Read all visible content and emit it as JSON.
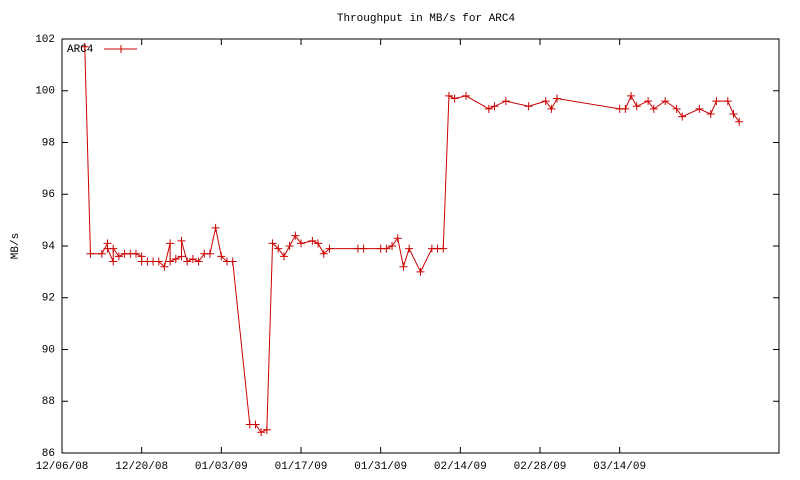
{
  "chart_data": {
    "type": "line",
    "title": "Throughput in MB/s for ARC4",
    "ylabel": "MB/s",
    "legend": "top-left",
    "xlim": [
      "2008-12-06",
      "2009-04-11"
    ],
    "xticks": [
      {
        "value": "2008-12-06",
        "label": "12/06/08"
      },
      {
        "value": "2008-12-20",
        "label": "12/20/08"
      },
      {
        "value": "2009-01-03",
        "label": "01/03/09"
      },
      {
        "value": "2009-01-17",
        "label": "01/17/09"
      },
      {
        "value": "2009-01-31",
        "label": "01/31/09"
      },
      {
        "value": "2009-02-14",
        "label": "02/14/09"
      },
      {
        "value": "2009-02-28",
        "label": "02/28/09"
      },
      {
        "value": "2009-03-14",
        "label": "03/14/09"
      }
    ],
    "ylim": [
      86,
      102
    ],
    "yticks": [
      86,
      88,
      90,
      92,
      94,
      96,
      98,
      100,
      102
    ],
    "x": [
      "2008-12-10",
      "2008-12-11",
      "2008-12-13",
      "2008-12-14",
      "2008-12-14",
      "2008-12-15",
      "2008-12-15",
      "2008-12-16",
      "2008-12-17",
      "2008-12-18",
      "2008-12-19",
      "2008-12-20",
      "2008-12-20",
      "2008-12-21",
      "2008-12-22",
      "2008-12-23",
      "2008-12-24",
      "2008-12-25",
      "2008-12-25",
      "2008-12-26",
      "2008-12-27",
      "2008-12-27",
      "2008-12-28",
      "2008-12-29",
      "2008-12-30",
      "2008-12-31",
      "2009-01-01",
      "2009-01-02",
      "2009-01-03",
      "2009-01-04",
      "2009-01-05",
      "2009-01-08",
      "2009-01-09",
      "2009-01-10",
      "2009-01-11",
      "2009-01-12",
      "2009-01-13",
      "2009-01-14",
      "2009-01-15",
      "2009-01-16",
      "2009-01-17",
      "2009-01-19",
      "2009-01-20",
      "2009-01-21",
      "2009-01-22",
      "2009-01-27",
      "2009-01-28",
      "2009-01-31",
      "2009-02-01",
      "2009-02-02",
      "2009-02-03",
      "2009-02-04",
      "2009-02-05",
      "2009-02-07",
      "2009-02-09",
      "2009-02-10",
      "2009-02-11",
      "2009-02-12",
      "2009-02-13",
      "2009-02-15",
      "2009-02-19",
      "2009-02-20",
      "2009-02-22",
      "2009-02-26",
      "2009-03-01",
      "2009-03-02",
      "2009-03-03",
      "2009-03-14",
      "2009-03-15",
      "2009-03-16",
      "2009-03-17",
      "2009-03-19",
      "2009-03-20",
      "2009-03-22",
      "2009-03-24",
      "2009-03-25",
      "2009-03-28",
      "2009-03-30",
      "2009-03-31",
      "2009-04-02",
      "2009-04-03",
      "2009-04-04"
    ],
    "series": [
      {
        "name": "ARC4",
        "color": "#cc0000",
        "values": [
          101.7,
          93.7,
          93.7,
          94.1,
          93.9,
          93.4,
          93.9,
          93.6,
          93.7,
          93.7,
          93.7,
          93.6,
          93.4,
          93.4,
          93.4,
          93.4,
          93.2,
          94.1,
          93.4,
          93.5,
          93.6,
          94.2,
          93.4,
          93.5,
          93.4,
          93.7,
          93.7,
          94.7,
          93.6,
          93.4,
          93.4,
          87.1,
          87.1,
          86.8,
          86.9,
          94.1,
          93.9,
          93.6,
          94.0,
          94.4,
          94.1,
          94.2,
          94.1,
          93.7,
          93.9,
          93.9,
          93.9,
          93.9,
          93.9,
          94.0,
          94.3,
          93.2,
          93.9,
          93.0,
          93.9,
          93.9,
          93.9,
          99.8,
          99.7,
          99.8,
          99.3,
          99.4,
          99.6,
          99.4,
          99.6,
          99.3,
          99.7,
          99.3,
          99.3,
          99.8,
          99.4,
          99.6,
          99.3,
          99.6,
          99.3,
          99.0,
          99.3,
          99.1,
          99.6,
          99.6,
          99.1,
          98.8
        ]
      }
    ]
  }
}
